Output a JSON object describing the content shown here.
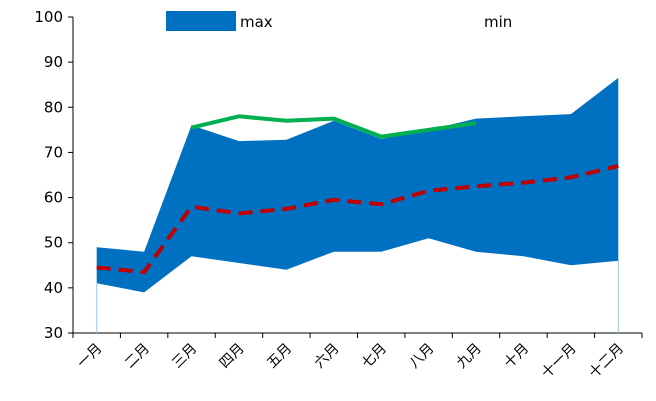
{
  "chart_data": {
    "type": "area",
    "categories": [
      "一月",
      "二月",
      "三月",
      "四月",
      "五月",
      "六月",
      "七月",
      "八月",
      "九月",
      "十月",
      "十一月",
      "十二月"
    ],
    "ylim": [
      30,
      100
    ],
    "yticks": [
      30,
      40,
      50,
      60,
      70,
      80,
      90,
      100
    ],
    "legend_position": "top",
    "series": [
      {
        "name": "max",
        "role": "band-upper",
        "color": "#0070C0",
        "values": [
          49,
          48,
          76,
          72.5,
          72.8,
          77,
          73,
          75,
          77.5,
          78,
          78.5,
          86.5
        ]
      },
      {
        "name": "min",
        "role": "band-lower",
        "color": "#ffffff",
        "values": [
          41,
          39,
          47,
          45.5,
          44,
          48,
          48,
          51,
          48,
          47,
          45,
          46
        ]
      },
      {
        "role": "line-dashed",
        "color": "#C00000",
        "values": [
          44.5,
          43.5,
          58,
          56.5,
          57.5,
          59.5,
          58.5,
          61.5,
          62.5,
          63.3,
          64.5,
          67
        ]
      },
      {
        "role": "line",
        "color": "#00B050",
        "values": [
          null,
          null,
          75.5,
          78,
          77,
          77.5,
          73.5,
          75,
          76.5,
          null,
          null,
          null
        ]
      }
    ]
  }
}
